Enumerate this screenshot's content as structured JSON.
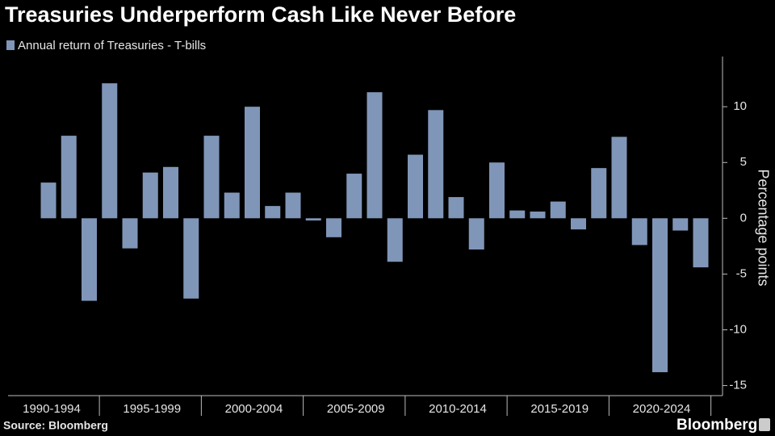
{
  "chart_data": {
    "type": "bar",
    "title": "Treasuries Underperform Cash Like Never Before",
    "series": [
      {
        "name": "Annual return of Treasuries - T-bills",
        "color": "#8096b8",
        "values": [
          3.2,
          7.4,
          -7.4,
          12.1,
          -2.7,
          4.1,
          4.6,
          -7.2,
          7.4,
          2.3,
          10.0,
          1.1,
          2.3,
          -0.2,
          -1.7,
          4.0,
          11.3,
          -3.9,
          5.7,
          9.7,
          1.9,
          -2.8,
          5.0,
          0.7,
          0.6,
          1.5,
          -1.0,
          4.5,
          7.3,
          -2.4,
          -13.8,
          -1.1,
          -4.4
        ]
      }
    ],
    "categories": [
      null,
      null,
      null,
      null,
      null,
      null,
      null,
      null,
      null,
      null,
      null,
      null,
      null,
      null,
      null,
      null,
      null,
      null,
      null,
      null,
      null,
      null,
      null,
      null,
      null,
      null,
      null,
      null,
      null,
      null,
      null,
      null,
      null
    ],
    "category_groups": [
      "1990-1994",
      "1995-1999",
      "2000-2004",
      "2005-2009",
      "2010-2014",
      "2015-2019",
      "2020-2024"
    ],
    "y_axis_label": "Percentage points",
    "ylim": [
      -15.9,
      14.5
    ],
    "yticks": [
      10,
      5,
      0,
      -5,
      -10,
      -15
    ],
    "y_axis_side": "right",
    "source": "Source: Bloomberg",
    "brand": "Bloomberg"
  }
}
